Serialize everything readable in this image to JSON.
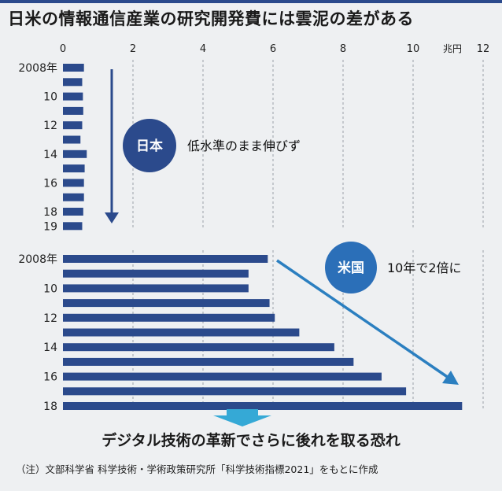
{
  "title": "日米の情報通信産業の研究開発費には雲泥の差がある",
  "unit_label": "兆円",
  "japan": {
    "badge": "日本",
    "annotation": "低水準のまま伸びず"
  },
  "usa": {
    "badge": "米国",
    "annotation": "10年で2倍に"
  },
  "caption": "デジタル技術の革新でさらに後れを取る恐れ",
  "note": "（注）文部科学省 科学技術・学術政策研究所「科学技術指標2021」をもとに作成",
  "colors": {
    "bar": "#2b4a8c",
    "badge": "#2b4a8c",
    "arrow": "#2b4a8c",
    "down_arrow": "#35a9d6"
  },
  "chart_data": [
    {
      "type": "bar",
      "orientation": "horizontal",
      "series": [
        {
          "name": "日本",
          "values": [
            0.6,
            0.55,
            0.57,
            0.58,
            0.55,
            0.5,
            0.68,
            0.62,
            0.6,
            0.6,
            0.58,
            0.55
          ]
        }
      ],
      "categories": [
        "2008",
        "2009",
        "2010",
        "2011",
        "2012",
        "2013",
        "2014",
        "2015",
        "2016",
        "2017",
        "2018",
        "2019"
      ],
      "tick_labels": [
        "2008年",
        "10",
        "12",
        "14",
        "16",
        "18",
        "19"
      ],
      "tick_categories": [
        "2008",
        "2010",
        "2012",
        "2014",
        "2016",
        "2018",
        "2019"
      ],
      "x_ticks": [
        "0",
        "2",
        "4",
        "6",
        "8",
        "10",
        "12"
      ],
      "xlim": [
        0,
        12
      ],
      "grid": true
    },
    {
      "type": "bar",
      "orientation": "horizontal",
      "series": [
        {
          "name": "米国",
          "values": [
            5.85,
            5.3,
            5.3,
            5.9,
            6.05,
            6.75,
            7.75,
            8.3,
            9.1,
            9.8,
            11.4
          ]
        }
      ],
      "categories": [
        "2008",
        "2009",
        "2010",
        "2011",
        "2012",
        "2013",
        "2014",
        "2015",
        "2016",
        "2017",
        "2018"
      ],
      "tick_labels": [
        "2008年",
        "10",
        "12",
        "14",
        "16",
        "18"
      ],
      "tick_categories": [
        "2008",
        "2010",
        "2012",
        "2014",
        "2016",
        "2018"
      ],
      "xlim": [
        0,
        12
      ],
      "grid": true
    }
  ]
}
